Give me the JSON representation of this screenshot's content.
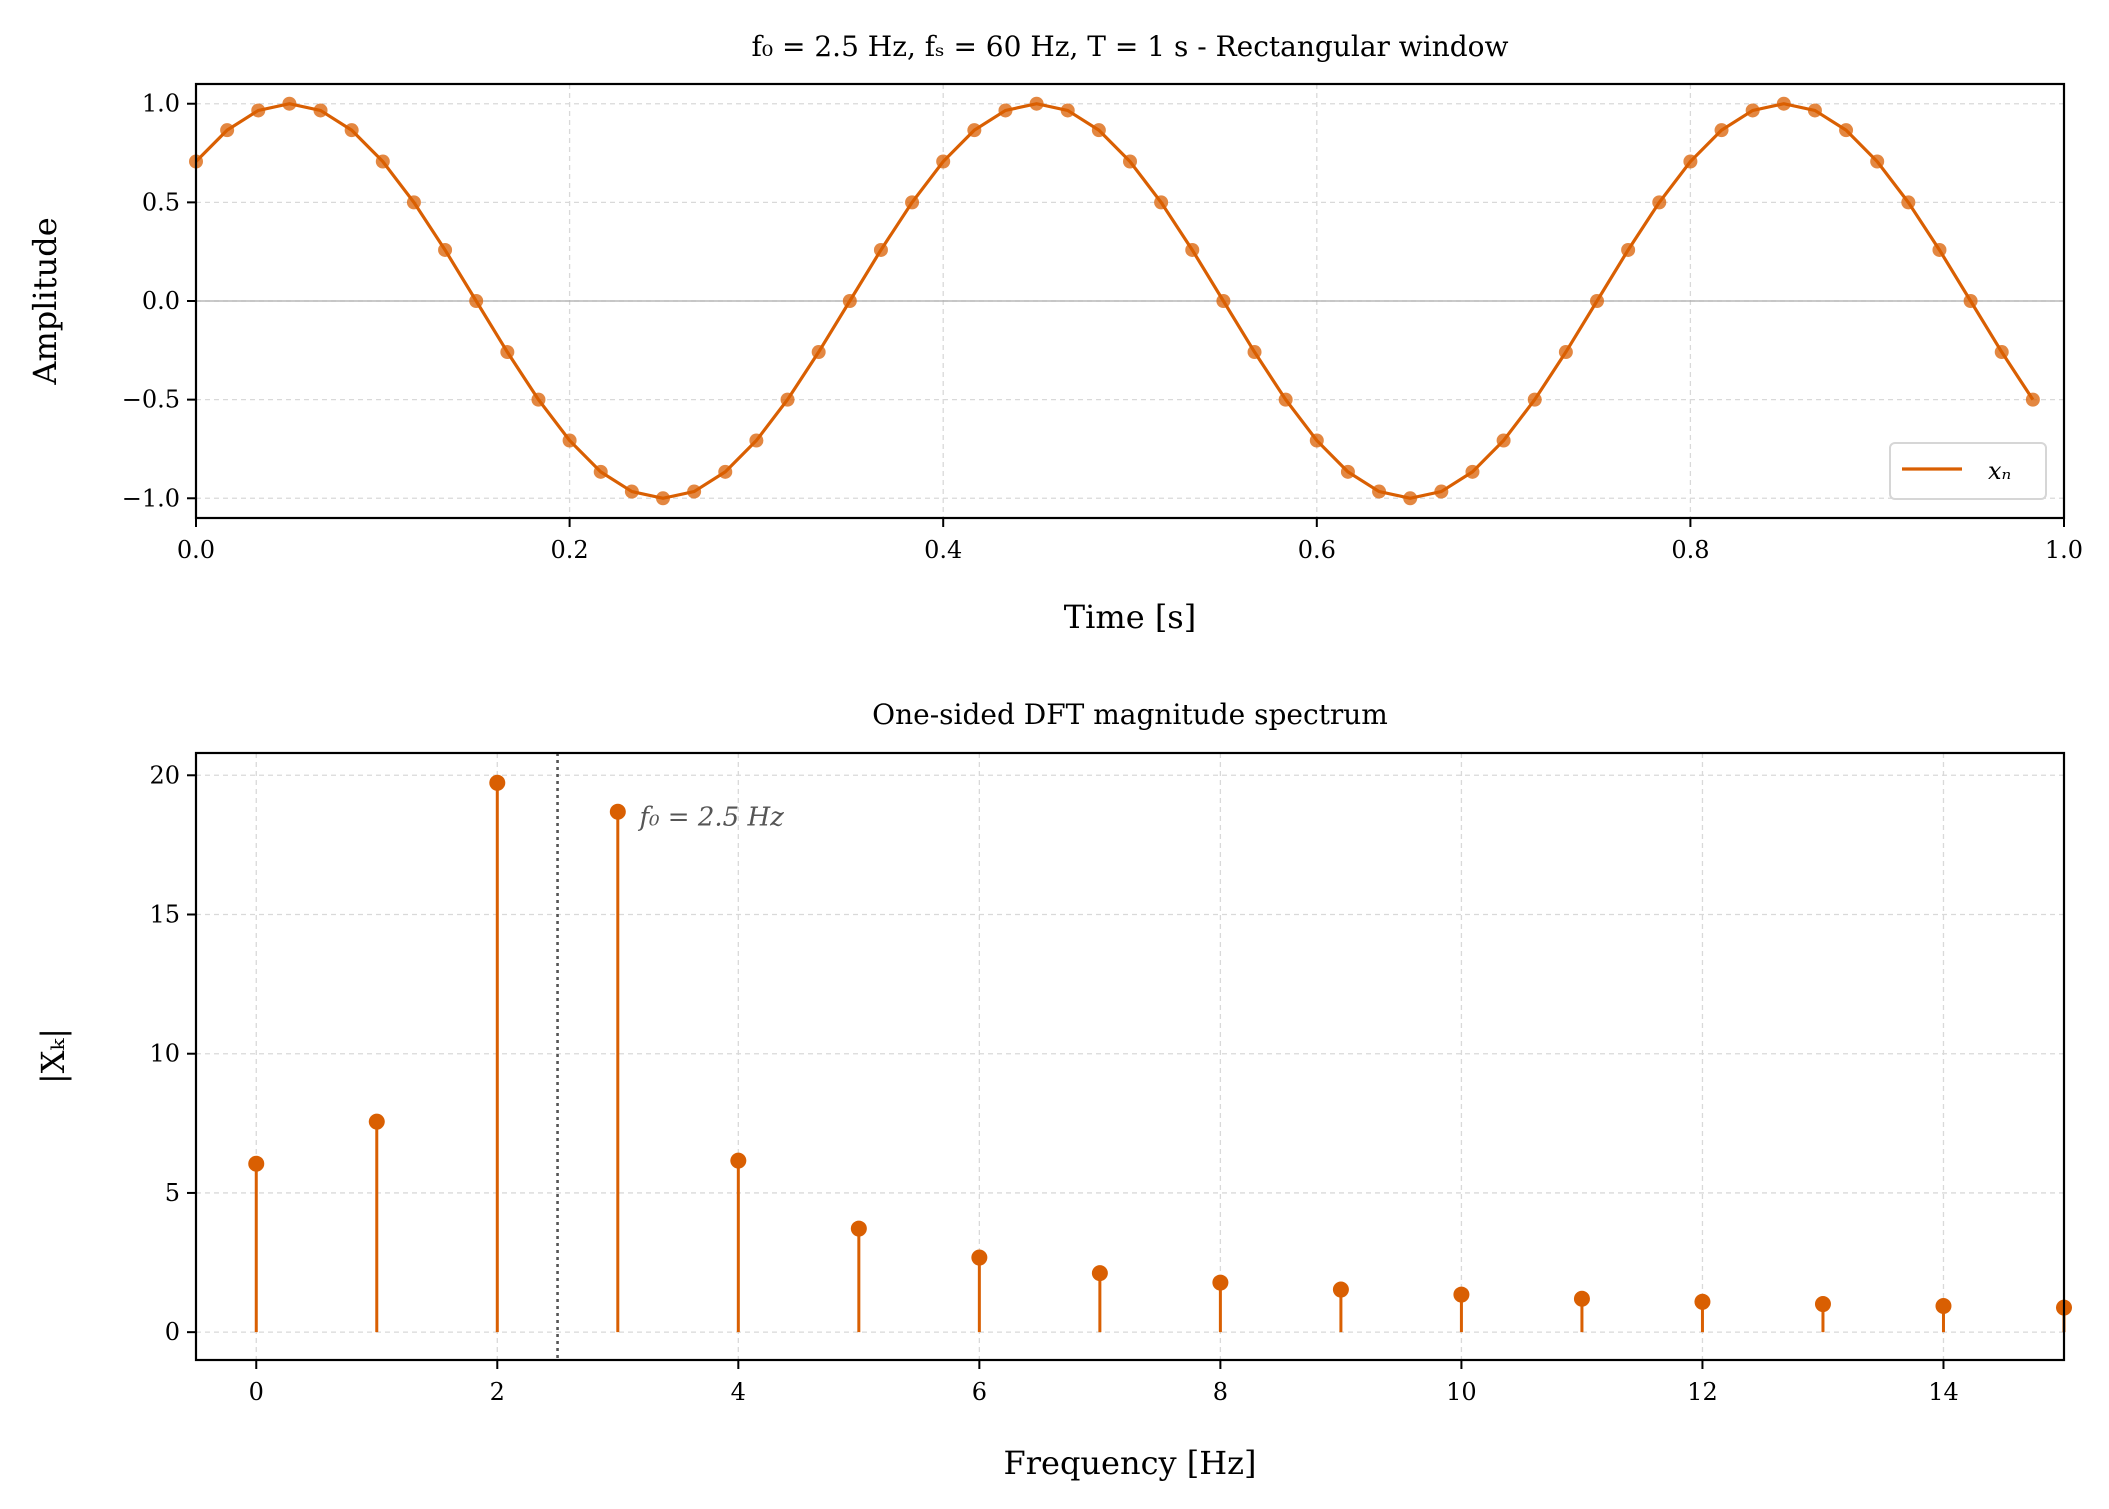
{
  "chart_data": [
    {
      "type": "line",
      "title": "f₀ = 2.5 Hz, fₛ = 60 Hz, T = 1 s - Rectangular window",
      "xlabel": "Time [s]",
      "ylabel": "Amplitude",
      "xlim": [
        0,
        1.0
      ],
      "ylim": [
        -1.1,
        1.1
      ],
      "xticks": [
        "0.0",
        "0.2",
        "0.4",
        "0.6",
        "0.8",
        "1.0"
      ],
      "yticks": [
        "−1.0",
        "−0.5",
        "0.0",
        "0.5",
        "1.0"
      ],
      "grid": true,
      "legend": {
        "position": "lower-right",
        "entries": [
          "xₙ"
        ]
      },
      "color": "#d95f02",
      "signal": {
        "f0_hz": 2.5,
        "fs_hz": 60,
        "duration_s": 1,
        "phase_rad": 0.7853981634,
        "amplitude": 1
      },
      "series": [
        {
          "name": "xₙ",
          "markers": true
        }
      ]
    },
    {
      "type": "stem",
      "title": "One-sided DFT magnitude spectrum",
      "xlabel": "Frequency [Hz]",
      "ylabel": "|Xₖ|",
      "xlim": [
        -0.5,
        15
      ],
      "ylim": [
        -1,
        20.8
      ],
      "xticks": [
        "0",
        "2",
        "4",
        "6",
        "8",
        "10",
        "12",
        "14"
      ],
      "yticks": [
        "0",
        "5",
        "10",
        "15",
        "20"
      ],
      "grid": true,
      "color": "#d95f02",
      "x": [
        0,
        1,
        2,
        3,
        4,
        5,
        6,
        7,
        8,
        9,
        10,
        11,
        12,
        13,
        14,
        15
      ],
      "values": [
        6.05,
        7.56,
        19.73,
        18.69,
        6.16,
        3.72,
        2.68,
        2.12,
        1.78,
        1.53,
        1.35,
        1.2,
        1.09,
        1.01,
        0.94,
        0.88
      ],
      "vline": {
        "x": 2.5,
        "label": "f₀ = 2.5 Hz",
        "color": "#555555"
      }
    }
  ]
}
